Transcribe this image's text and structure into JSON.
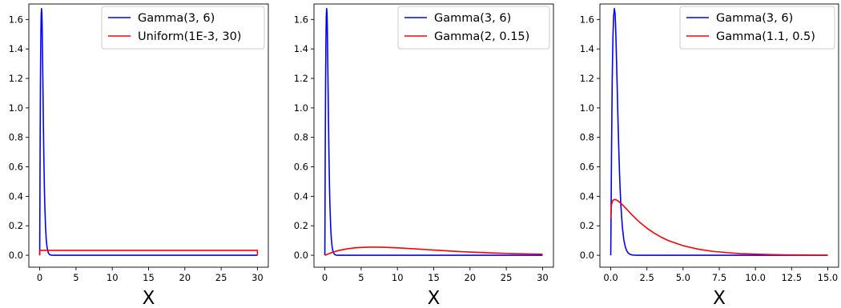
{
  "chart_data": [
    {
      "type": "line",
      "xlabel": "X",
      "xlim": [
        -1.5,
        31.5
      ],
      "ylim": [
        -0.081,
        1.705
      ],
      "xticks": [
        0,
        5,
        10,
        15,
        20,
        25,
        30
      ],
      "xtick_labels": [
        "0",
        "5",
        "10",
        "15",
        "20",
        "25",
        "30"
      ],
      "yticks": [
        0.0,
        0.2,
        0.4,
        0.6,
        0.8,
        1.0,
        1.2,
        1.4,
        1.6
      ],
      "ytick_labels": [
        "0.0",
        "0.2",
        "0.4",
        "0.6",
        "0.8",
        "1.0",
        "1.2",
        "1.4",
        "1.6"
      ],
      "legend_position": "top-right",
      "grid": false,
      "series": [
        {
          "name": "Gamma(3, 6)",
          "color": "#0000ff",
          "x": [
            0,
            0.05,
            0.1,
            0.15,
            0.2,
            0.25,
            0.3,
            0.33,
            0.36,
            0.4,
            0.45,
            0.5,
            0.55,
            0.6,
            0.65,
            0.7,
            0.8,
            0.9,
            1.0,
            1.1,
            1.2,
            1.3,
            1.4,
            1.5,
            1.6,
            1.8,
            2.0,
            2.25,
            2.5,
            3.0,
            4.0,
            5.0,
            10.0,
            20.0,
            30.0
          ],
          "y": [
            0,
            0.668,
            1.186,
            1.475,
            1.626,
            1.674,
            1.638,
            1.567,
            1.47,
            1.32,
            1.12,
            0.916,
            0.733,
            0.575,
            0.444,
            0.339,
            0.193,
            0.107,
            0.058,
            0.031,
            0.016,
            0.008,
            0.004,
            0.002,
            0.001,
            0.0003,
            0.0001,
            0.0,
            0.0,
            0.0,
            0.0,
            0.0,
            0.0,
            0.0,
            0.0
          ]
        },
        {
          "name": "Uniform(1E-3, 30)",
          "color": "#ff0000",
          "x": [
            0.001,
            0.001,
            30,
            30
          ],
          "y": [
            0,
            0.0333,
            0.0333,
            0
          ]
        }
      ]
    },
    {
      "type": "line",
      "xlabel": "X",
      "xlim": [
        -1.5,
        31.5
      ],
      "ylim": [
        -0.081,
        1.705
      ],
      "xticks": [
        0,
        5,
        10,
        15,
        20,
        25,
        30
      ],
      "xtick_labels": [
        "0",
        "5",
        "10",
        "15",
        "20",
        "25",
        "30"
      ],
      "yticks": [
        0.0,
        0.2,
        0.4,
        0.6,
        0.8,
        1.0,
        1.2,
        1.4,
        1.6
      ],
      "ytick_labels": [
        "0.0",
        "0.2",
        "0.4",
        "0.6",
        "0.8",
        "1.0",
        "1.2",
        "1.4",
        "1.6"
      ],
      "legend_position": "top-right",
      "grid": false,
      "series": [
        {
          "name": "Gamma(3, 6)",
          "color": "#0000ff",
          "x": [
            0,
            0.05,
            0.1,
            0.15,
            0.2,
            0.25,
            0.3,
            0.33,
            0.36,
            0.4,
            0.45,
            0.5,
            0.55,
            0.6,
            0.65,
            0.7,
            0.8,
            0.9,
            1.0,
            1.1,
            1.2,
            1.3,
            1.4,
            1.5,
            1.6,
            1.8,
            2.0,
            2.25,
            2.5,
            3.0,
            4.0,
            5.0,
            10.0,
            20.0,
            30.0
          ],
          "y": [
            0,
            0.668,
            1.186,
            1.475,
            1.626,
            1.674,
            1.638,
            1.567,
            1.47,
            1.32,
            1.12,
            0.916,
            0.733,
            0.575,
            0.444,
            0.339,
            0.193,
            0.107,
            0.058,
            0.031,
            0.016,
            0.008,
            0.004,
            0.002,
            0.001,
            0.0003,
            0.0001,
            0.0,
            0.0,
            0.0,
            0.0,
            0.0,
            0.0,
            0.0,
            0.0
          ]
        },
        {
          "name": "Gamma(2, 0.15)",
          "color": "#ff0000",
          "x": [
            0,
            1,
            2,
            3,
            4,
            5,
            6,
            6.67,
            7,
            8,
            9,
            10,
            11,
            12,
            13,
            14,
            15,
            16,
            17,
            18,
            19,
            20,
            21,
            22,
            23,
            24,
            25,
            26,
            27,
            28,
            29,
            30
          ],
          "y": [
            0,
            0.0194,
            0.0333,
            0.043,
            0.0494,
            0.0531,
            0.0549,
            0.0552,
            0.0551,
            0.0542,
            0.0525,
            0.0502,
            0.0475,
            0.0446,
            0.0415,
            0.0385,
            0.0354,
            0.0324,
            0.0295,
            0.0268,
            0.0242,
            0.0219,
            0.0197,
            0.0177,
            0.0158,
            0.0141,
            0.0126,
            0.0112,
            0.01,
            0.0089,
            0.0079,
            0.007
          ]
        }
      ]
    },
    {
      "type": "line",
      "xlabel": "X",
      "xlim": [
        -0.75,
        15.75
      ],
      "ylim": [
        -0.081,
        1.705
      ],
      "xticks": [
        0,
        2.5,
        5,
        7.5,
        10,
        12.5,
        15
      ],
      "xtick_labels": [
        "0.0",
        "2.5",
        "5.0",
        "7.5",
        "10.0",
        "12.5",
        "15.0"
      ],
      "yticks": [
        0.0,
        0.2,
        0.4,
        0.6,
        0.8,
        1.0,
        1.2,
        1.4,
        1.6
      ],
      "ytick_labels": [
        "0.0",
        "0.2",
        "0.4",
        "0.6",
        "0.8",
        "1.0",
        "1.2",
        "1.4",
        "1.6"
      ],
      "legend_position": "top-right",
      "grid": false,
      "series": [
        {
          "name": "Gamma(3, 6)",
          "color": "#0000ff",
          "x": [
            0,
            0.05,
            0.1,
            0.15,
            0.2,
            0.25,
            0.3,
            0.33,
            0.36,
            0.4,
            0.45,
            0.5,
            0.55,
            0.6,
            0.65,
            0.7,
            0.8,
            0.9,
            1.0,
            1.1,
            1.2,
            1.3,
            1.4,
            1.5,
            1.6,
            1.8,
            2.0,
            2.25,
            2.5,
            3.0,
            4.0,
            5.0,
            10.0,
            15.0
          ],
          "y": [
            0,
            0.668,
            1.186,
            1.475,
            1.626,
            1.674,
            1.638,
            1.567,
            1.47,
            1.32,
            1.12,
            0.916,
            0.733,
            0.575,
            0.444,
            0.339,
            0.193,
            0.107,
            0.058,
            0.031,
            0.016,
            0.008,
            0.004,
            0.002,
            0.001,
            0.0003,
            0.0001,
            0.0,
            0.0,
            0.0,
            0.0,
            0.0,
            0.0,
            0.0
          ]
        },
        {
          "name": "Gamma(1.1, 0.5)",
          "color": "#ff0000",
          "x": [
            0.0,
            0.05,
            0.1,
            0.15,
            0.2,
            0.3,
            0.4,
            0.5,
            0.75,
            1.0,
            1.25,
            1.5,
            1.75,
            2.0,
            2.5,
            3.0,
            3.5,
            4.0,
            5.0,
            6.0,
            7.0,
            8.0,
            9.0,
            10.0,
            11.0,
            12.0,
            13.0,
            14.0,
            15.0
          ],
          "y": [
            0.25,
            0.34,
            0.363,
            0.372,
            0.376,
            0.378,
            0.375,
            0.369,
            0.348,
            0.323,
            0.297,
            0.271,
            0.247,
            0.224,
            0.184,
            0.15,
            0.122,
            0.099,
            0.065,
            0.042,
            0.027,
            0.018,
            0.011,
            0.0074,
            0.0048,
            0.0031,
            0.002,
            0.0013,
            0.0008
          ]
        }
      ]
    }
  ]
}
